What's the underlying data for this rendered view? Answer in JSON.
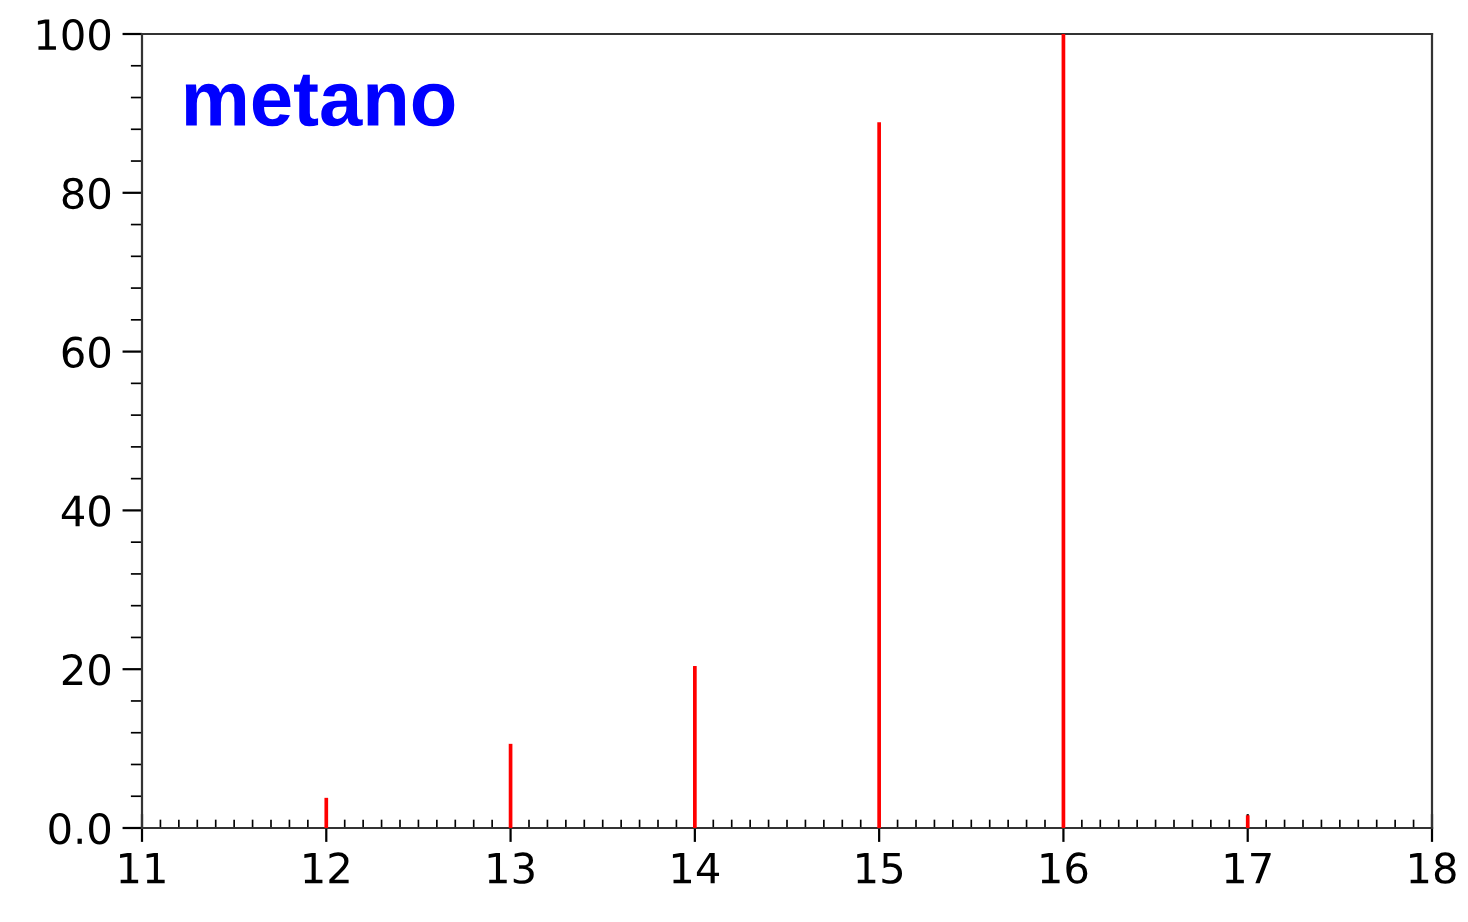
{
  "chart_data": {
    "type": "bar",
    "title": "metano",
    "x": [
      12,
      13,
      14,
      15,
      16,
      17
    ],
    "values": [
      3.8,
      10.6,
      20.4,
      88.9,
      100,
      1.6
    ],
    "color": "#ff0000",
    "xlim": [
      11,
      18
    ],
    "xticks": [
      11,
      12,
      13,
      14,
      15,
      16,
      17,
      18
    ],
    "ylim": [
      0,
      100
    ],
    "yticks": [
      {
        "value": 0,
        "label": "0.0"
      },
      20,
      40,
      60,
      80,
      100
    ],
    "grid": false,
    "legend": false
  }
}
